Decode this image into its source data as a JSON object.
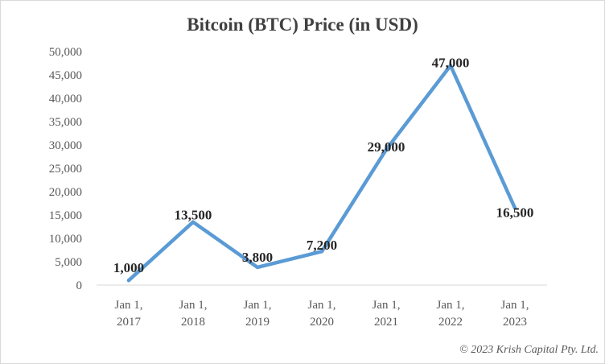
{
  "chart_data": {
    "type": "line",
    "title": "Bitcoin (BTC) Price (in USD)",
    "categories": [
      [
        "Jan 1,",
        "2017"
      ],
      [
        "Jan 1,",
        "2018"
      ],
      [
        "Jan 1,",
        "2019"
      ],
      [
        "Jan 1,",
        "2020"
      ],
      [
        "Jan 1,",
        "2021"
      ],
      [
        "Jan 1,",
        "2022"
      ],
      [
        "Jan 1,",
        "2023"
      ]
    ],
    "values": [
      1000,
      13500,
      3800,
      7200,
      29000,
      47000,
      16500
    ],
    "data_labels": [
      "1,000",
      "13,500",
      "3,800",
      "7,200",
      "29,000",
      "47,000",
      "16,500"
    ],
    "y_ticks": [
      "0",
      "5,000",
      "10,000",
      "15,000",
      "20,000",
      "25,000",
      "30,000",
      "35,000",
      "40,000",
      "45,000",
      "50,000"
    ],
    "ylim": [
      0,
      50000
    ],
    "xlabel": "",
    "ylabel": "",
    "grid": false,
    "legend": "none",
    "line_color": "#5b9bd5"
  },
  "footer": {
    "copyright": "© 2023 Krish Capital Pty. Ltd."
  }
}
